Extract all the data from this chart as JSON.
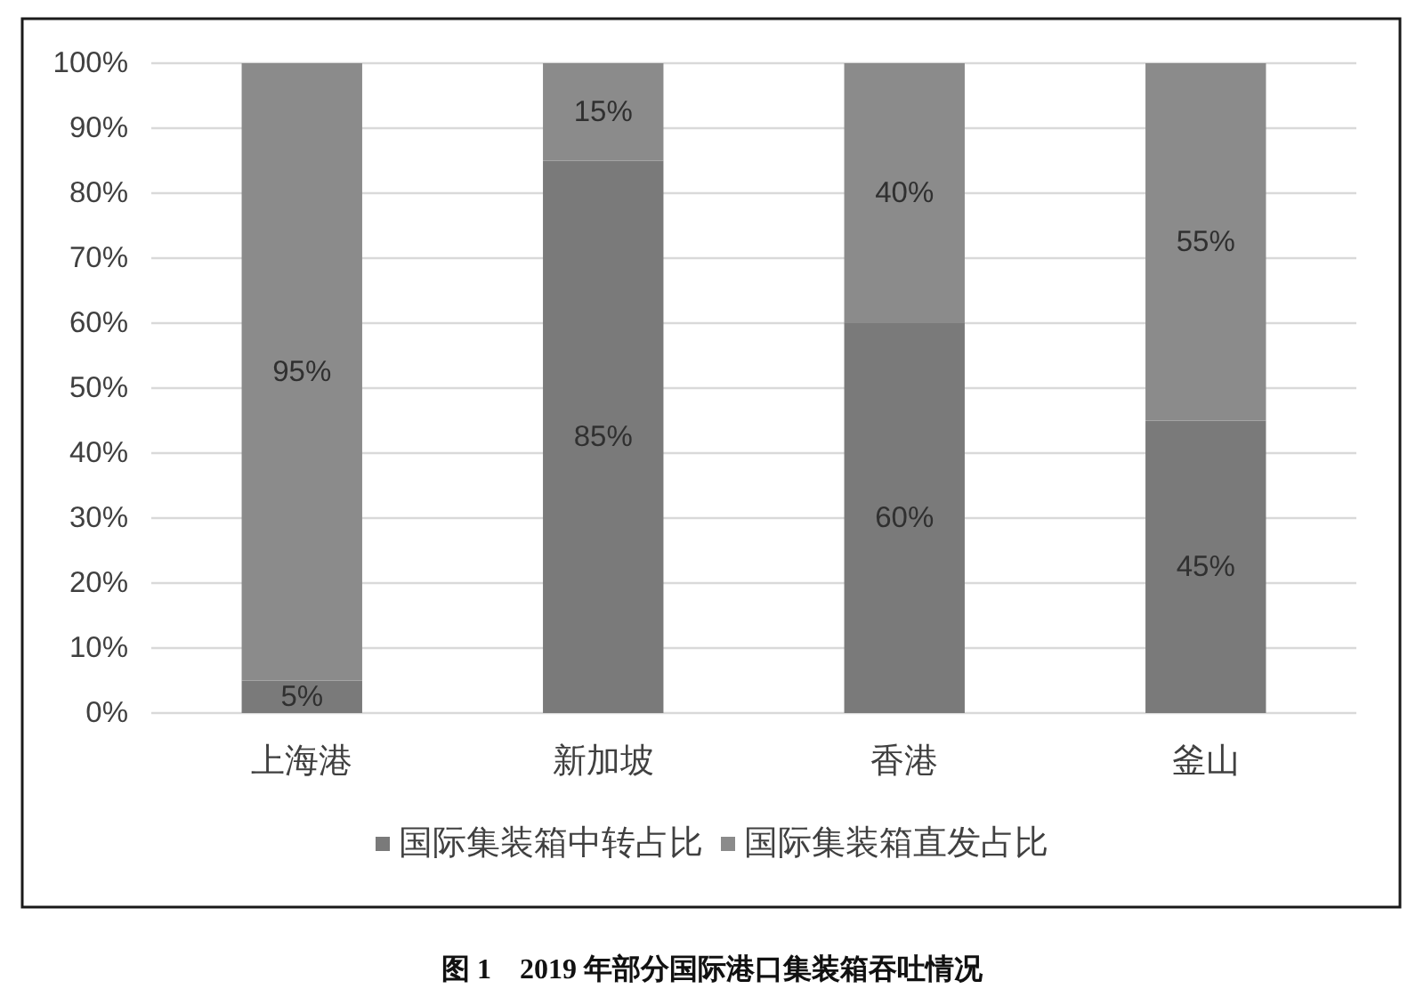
{
  "chart_data": {
    "type": "bar",
    "categories": [
      "上海港",
      "新加坡",
      "香港",
      "釜山"
    ],
    "series": [
      {
        "name": "国际集装箱中转占比",
        "color": "#7a7a7a",
        "values": [
          5,
          85,
          60,
          45
        ],
        "value_labels": [
          "5%",
          "85%",
          "60%",
          "45%"
        ]
      },
      {
        "name": "国际集装箱直发占比",
        "color": "#8b8b8b",
        "values": [
          95,
          15,
          40,
          55
        ],
        "value_labels": [
          "95%",
          "15%",
          "40%",
          "55%"
        ]
      }
    ],
    "stacked": true,
    "ylim": [
      0,
      100
    ],
    "yticks": [
      {
        "value": 0,
        "label": "0%"
      },
      {
        "value": 10,
        "label": "10%"
      },
      {
        "value": 20,
        "label": "20%"
      },
      {
        "value": 30,
        "label": "30%"
      },
      {
        "value": 40,
        "label": "40%"
      },
      {
        "value": 50,
        "label": "50%"
      },
      {
        "value": 60,
        "label": "60%"
      },
      {
        "value": 70,
        "label": "70%"
      },
      {
        "value": 80,
        "label": "80%"
      },
      {
        "value": 90,
        "label": "90%"
      },
      {
        "value": 100,
        "label": "100%"
      }
    ],
    "grid": "y",
    "legend": "bottom",
    "annotations": [
      "图 1　2019 年部分国际港口集装箱吞吐情况"
    ]
  }
}
